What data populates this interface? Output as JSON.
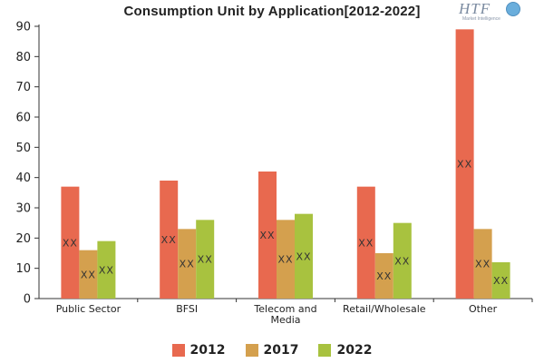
{
  "chart_data": {
    "type": "bar",
    "title": "Consumption Unit by  Application[2012-2022]",
    "categories": [
      "Public Sector",
      "BFSI",
      "Telecom and Media",
      "Retail/Wholesale",
      "Other"
    ],
    "category_lines": [
      [
        "Public Sector"
      ],
      [
        "BFSI"
      ],
      [
        "Telecom and",
        "Media"
      ],
      [
        "Retail/Wholesale"
      ],
      [
        "Other"
      ]
    ],
    "series": [
      {
        "name": "2012",
        "color": "#e8694f",
        "values": [
          37,
          39,
          42,
          37,
          89
        ]
      },
      {
        "name": "2017",
        "color": "#d4a04e",
        "values": [
          16,
          23,
          26,
          15,
          23
        ]
      },
      {
        "name": "2022",
        "color": "#a8c23f",
        "values": [
          19,
          26,
          28,
          25,
          12
        ]
      }
    ],
    "data_label": "XX",
    "ylim": [
      0,
      90
    ],
    "yticks": [
      0,
      10,
      20,
      30,
      40,
      50,
      60,
      70,
      80,
      90
    ],
    "grid": false,
    "legend_position": "bottom"
  },
  "logo": {
    "main": "HTF",
    "sub": "Market Intelligence"
  }
}
